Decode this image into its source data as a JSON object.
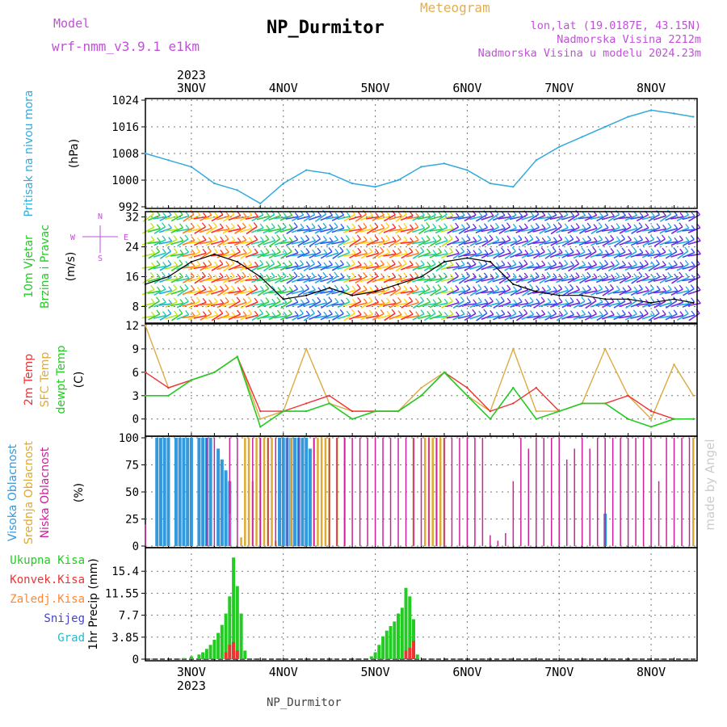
{
  "header": {
    "title": "NP_Durmitor",
    "model_label": "Model",
    "model_name": "wrf-nmm_v3.9.1 e1km",
    "meteogram_label": "Meteogram",
    "right_line1": "lon,lat (19.0187E, 43.15N)",
    "right_line2": "Nadmorska Visina 2212m",
    "right_line3": "Nadmorska Visina u modelu 2024.23m",
    "footer": "NP_Durmitor",
    "watermark": "made by Angel"
  },
  "colors": {
    "pressure": "#33aadd",
    "wind_speed": "#000000",
    "temp_2m": "#ee3333",
    "temp_sfc": "#ddaa44",
    "dewpt": "#22cc22",
    "high_cloud": "#3399dd",
    "mid_cloud": "#ddaa33",
    "low_cloud": "#cc2299",
    "total_precip": "#22cc22",
    "conv_precip": "#ee3333",
    "frozen": "#ff8833",
    "snow": "#4444cc",
    "hail": "#22bbcc"
  },
  "chart_data": {
    "type": "line",
    "time_axis": {
      "start_hours_before_3nov": 12,
      "total_hours": 144,
      "date_labels_top": [
        "3NOV",
        "4NOV",
        "5NOV",
        "6NOV",
        "7NOV",
        "8NOV"
      ],
      "date_labels_bottom": [
        "3NOV",
        "4NOV",
        "5NOV",
        "6NOV",
        "7NOV",
        "8NOV"
      ],
      "year_label": "2023"
    },
    "panels": [
      {
        "id": "pressure",
        "ylabel": [
          "Pritisak na nivou mora",
          "(hPa)"
        ],
        "ylim": [
          992,
          1024
        ],
        "yticks": [
          "992",
          "1000",
          "1008",
          "1016",
          "1024"
        ],
        "series": [
          {
            "name": "",
            "x": [
              0,
              6,
              12,
              18,
              24,
              30,
              36,
              42,
              48,
              54,
              60,
              66,
              72,
              78,
              84,
              90,
              96,
              102,
              108,
              114,
              120,
              126,
              132,
              138,
              143
            ],
            "y": [
              1008,
              1006,
              1004,
              999,
              997,
              993,
              999,
              1003,
              1002,
              999,
              998,
              1000,
              1004,
              1005,
              1003,
              999,
              998,
              1006,
              1010,
              1013,
              1016,
              1019,
              1021,
              1020,
              1019
            ]
          }
        ]
      },
      {
        "id": "wind",
        "ylabel": [
          "10m Vjetar",
          "Brzina i Pravac",
          "(m/s)"
        ],
        "ylim": [
          4,
          33
        ],
        "yticks": [
          "8",
          "16",
          "24",
          "32"
        ],
        "compass": [
          "N",
          "W",
          "E",
          "S"
        ],
        "series": [
          {
            "name": "",
            "x": [
              0,
              6,
              12,
              18,
              24,
              30,
              36,
              42,
              48,
              54,
              60,
              66,
              72,
              78,
              84,
              90,
              96,
              102,
              108,
              114,
              120,
              126,
              132,
              138,
              143
            ],
            "y": [
              14,
              16,
              20,
              22,
              20,
              16,
              10,
              11,
              13,
              11,
              12,
              14,
              16,
              20,
              21,
              20,
              14,
              12,
              11,
              11,
              10,
              10,
              9,
              10,
              9
            ]
          }
        ]
      },
      {
        "id": "temp",
        "ylabel": [
          "2m Temp",
          "SFC Temp",
          "dewpt Temp",
          "(C)"
        ],
        "ylim": [
          -2,
          12
        ],
        "yticks": [
          "0",
          "3",
          "6",
          "9",
          "12"
        ],
        "series": [
          {
            "name": "2m Temp",
            "x": [
              0,
              6,
              12,
              18,
              24,
              30,
              36,
              42,
              48,
              54,
              60,
              66,
              72,
              78,
              84,
              90,
              96,
              102,
              108,
              114,
              120,
              126,
              132,
              138,
              143
            ],
            "y": [
              6,
              4,
              5,
              6,
              8,
              1,
              1,
              2,
              3,
              1,
              1,
              1,
              3,
              6,
              4,
              1,
              2,
              4,
              1,
              2,
              2,
              3,
              1,
              0,
              0
            ]
          },
          {
            "name": "SFC Temp",
            "x": [
              0,
              6,
              12,
              18,
              24,
              30,
              36,
              42,
              48,
              54,
              60,
              66,
              72,
              78,
              84,
              90,
              96,
              102,
              108,
              114,
              120,
              126,
              132,
              138,
              143
            ],
            "y": [
              12,
              4,
              5,
              6,
              8,
              0,
              1,
              9,
              2,
              1,
              1,
              1,
              4,
              6,
              3,
              1,
              9,
              1,
              1,
              2,
              9,
              3,
              0,
              7,
              3
            ]
          },
          {
            "name": "dewpt Temp",
            "x": [
              0,
              6,
              12,
              18,
              24,
              30,
              36,
              42,
              48,
              54,
              60,
              66,
              72,
              78,
              84,
              90,
              96,
              102,
              108,
              114,
              120,
              126,
              132,
              138,
              143
            ],
            "y": [
              3,
              3,
              5,
              6,
              8,
              -1,
              1,
              1,
              2,
              0,
              1,
              1,
              3,
              6,
              3,
              0,
              4,
              0,
              1,
              2,
              2,
              0,
              -1,
              0,
              0
            ]
          }
        ]
      },
      {
        "id": "cloud",
        "ylabel": [
          "Visoka Oblacnost",
          "Srednja Oblacnost",
          "Niska Oblacnost",
          "(%)"
        ],
        "ylim": [
          0,
          100
        ],
        "yticks": [
          "0",
          "25",
          "50",
          "75",
          "100"
        ],
        "series": [
          {
            "name": "Visoka Oblacnost",
            "x": [
              3,
              4,
              5,
              6,
              8,
              9,
              10,
              11,
              12,
              14,
              15,
              16,
              17,
              19,
              20,
              21,
              22,
              35,
              36,
              37,
              38,
              39,
              40,
              41,
              42,
              43,
              120
            ],
            "y": [
              100,
              100,
              100,
              100,
              100,
              100,
              100,
              100,
              100,
              100,
              100,
              100,
              100,
              90,
              80,
              70,
              60,
              100,
              100,
              100,
              100,
              100,
              100,
              100,
              100,
              90,
              30
            ]
          },
          {
            "name": "Srednja Oblacnost",
            "x": [
              22,
              25,
              26,
              27,
              28,
              29,
              30,
              31,
              32,
              33,
              34,
              38,
              44,
              45,
              46,
              47,
              48,
              50,
              52,
              70,
              73,
              74,
              75,
              76,
              77,
              78,
              143
            ],
            "y": [
              30,
              8,
              100,
              100,
              60,
              100,
              100,
              100,
              100,
              100,
              5,
              100,
              100,
              100,
              100,
              100,
              100,
              100,
              100,
              100,
              100,
              100,
              100,
              100,
              100,
              100,
              100
            ]
          },
          {
            "name": "Niska Oblacnost",
            "x": [
              0,
              16,
              18,
              22,
              24,
              28,
              30,
              32,
              34,
              37,
              40,
              44,
              48,
              50,
              52,
              54,
              56,
              58,
              60,
              62,
              64,
              66,
              68,
              70,
              72,
              74,
              76,
              78,
              80,
              82,
              84,
              86,
              88,
              90,
              92,
              94,
              96,
              98,
              100,
              102,
              104,
              106,
              108,
              110,
              112,
              114,
              116,
              118,
              120,
              122,
              124,
              126,
              128,
              130,
              132,
              134,
              136,
              138,
              140,
              142
            ],
            "y": [
              20,
              100,
              100,
              100,
              100,
              100,
              100,
              100,
              100,
              100,
              100,
              100,
              100,
              100,
              100,
              100,
              100,
              100,
              100,
              100,
              100,
              100,
              100,
              100,
              100,
              100,
              100,
              100,
              100,
              100,
              100,
              100,
              100,
              10,
              5,
              12,
              60,
              100,
              90,
              100,
              100,
              100,
              100,
              80,
              90,
              100,
              90,
              100,
              100,
              100,
              100,
              100,
              100,
              100,
              100,
              60,
              100,
              100,
              100,
              100
            ]
          }
        ]
      },
      {
        "id": "precip",
        "ylabel": [
          "1hr Precip (mm)"
        ],
        "ylim": [
          0,
          19.25
        ],
        "yticks": [
          "0",
          "3.85",
          "7.7",
          "11.55",
          "15.4"
        ],
        "legend": [
          "Ukupna Kisa",
          "Konvek.Kisa",
          "Zaledj.Kisa",
          "Snijeg",
          "Grad"
        ],
        "series": [
          {
            "name": "Ukupna Kisa",
            "x": [
              10,
              12,
              14,
              15,
              16,
              17,
              18,
              19,
              20,
              21,
              22,
              23,
              24,
              25,
              26,
              59,
              60,
              61,
              62,
              63,
              64,
              65,
              66,
              67,
              68,
              69,
              70,
              71
            ],
            "y": [
              0.2,
              0.5,
              0.8,
              1.2,
              1.8,
              2.5,
              3.4,
              4.6,
              6.0,
              8.0,
              11.0,
              17.8,
              12.8,
              8.0,
              1.5,
              0.5,
              1.2,
              2.5,
              4.0,
              5.0,
              5.8,
              6.6,
              8.0,
              9.0,
              12.5,
              11.0,
              7.0,
              0.8
            ]
          },
          {
            "name": "Konvek.Kisa",
            "x": [
              21,
              22,
              23,
              24,
              68,
              69,
              70
            ],
            "y": [
              1.2,
              2.5,
              3.0,
              1.5,
              1.5,
              2.0,
              3.2
            ]
          }
        ]
      }
    ]
  }
}
